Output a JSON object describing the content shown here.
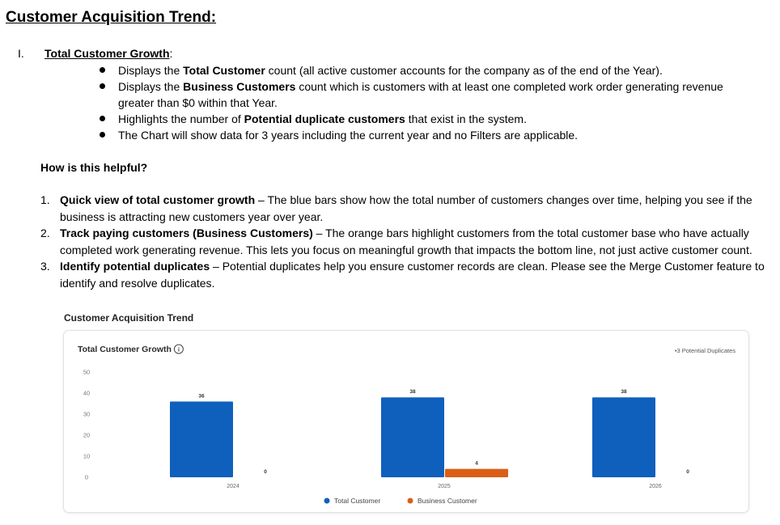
{
  "document": {
    "title": "Customer Acquisition Trend:",
    "section": {
      "number": "I.",
      "heading": "Total Customer Growth",
      "heading_suffix": ":",
      "bullets": [
        {
          "pre": "Displays the ",
          "bold": "Total Customer",
          "post": " count (all active customer accounts for the company as of the end of the Year)."
        },
        {
          "pre": "Displays the ",
          "bold": "Business Customers",
          "post": " count which is customers with at least one completed work order generating revenue greater than $0 within that Year."
        },
        {
          "pre": "Highlights the number of ",
          "bold": "Potential duplicate customers",
          "post": " that exist in the system."
        },
        {
          "pre": "The Chart will show data for 3 years including the current year and no Filters are applicable.",
          "bold": "",
          "post": ""
        }
      ]
    },
    "helpful_heading": "How is this helpful?",
    "points": [
      {
        "num": "1.",
        "bold": "Quick view of total customer growth",
        "text": " – The blue bars show how the total number of customers changes over time, helping you see if the business is attracting new customers year over year."
      },
      {
        "num": "2.",
        "bold": "Track paying customers (Business Customers)",
        "text": " – The orange bars highlight customers from the total customer base who have actually completed work generating revenue. This lets you focus on meaningful growth that impacts the bottom line, not just active customer count."
      },
      {
        "num": "3.",
        "bold": "Identify potential duplicates",
        "text": " – Potential duplicates help you ensure customer records are clean. Please see the Merge Customer feature to identify and resolve duplicates."
      }
    ],
    "figure_caption": "Customer Acquisition Trend"
  },
  "chart_data": {
    "type": "bar",
    "title": "Total Customer Growth",
    "info_icon": "info-circle-icon",
    "annotation": "•3 Potential Duplicates",
    "categories": [
      "2024",
      "2025",
      "2026"
    ],
    "series": [
      {
        "name": "Total Customer",
        "color": "#0f5fbd",
        "values": [
          36,
          38,
          38
        ]
      },
      {
        "name": "Business Customer",
        "color": "#d95f16",
        "values": [
          0,
          4,
          0
        ]
      }
    ],
    "y_ticks": [
      "0",
      "10",
      "20",
      "30",
      "40",
      "50"
    ],
    "ylim": [
      0,
      50
    ],
    "legend_position": "bottom-center",
    "grid": false
  }
}
